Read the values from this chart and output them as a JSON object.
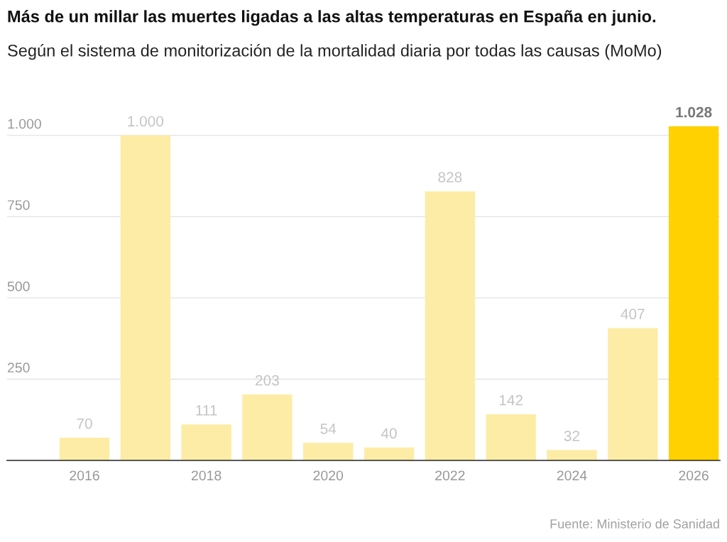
{
  "chart_data": {
    "type": "bar",
    "title": "Más de un millar las muertes ligadas a las altas temperaturas en España en junio.",
    "subtitle": "Según el sistema de monitorización de la mortalidad diaria por todas las causas (MoMo)",
    "categories": [
      "2016",
      null,
      "2018",
      null,
      "2020",
      null,
      "2022",
      null,
      "2024",
      null,
      "2026"
    ],
    "values": [
      70,
      1000,
      111,
      203,
      54,
      40,
      828,
      142,
      32,
      407,
      1028
    ],
    "colors": [
      "#fdeca6",
      "#fdeca6",
      "#fdeca6",
      "#fdeca6",
      "#fdeca6",
      "#fdeca6",
      "#fdeca6",
      "#fdeca6",
      "#fdeca6",
      "#fdeca6",
      "#ffd100"
    ],
    "value_labels": [
      "70",
      "1.000",
      "111",
      "203",
      "54",
      "40",
      "828",
      "142",
      "32",
      "407",
      "1.028"
    ],
    "ylim": [
      0,
      1028
    ],
    "yticks": [
      250,
      500,
      750,
      {
        "value": 1000,
        "label": "1.000"
      }
    ],
    "grid": "y",
    "annotations": [
      "Fuente: Ministerio de Sanidad"
    ]
  }
}
